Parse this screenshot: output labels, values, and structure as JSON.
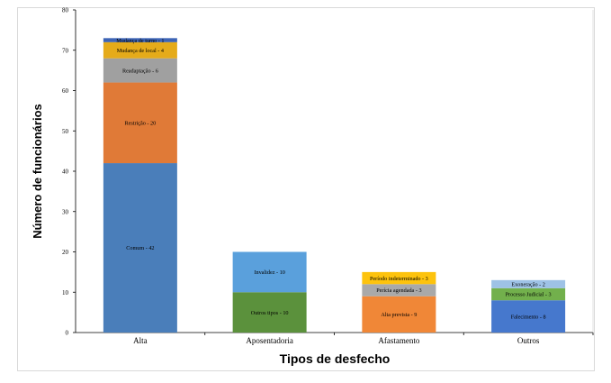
{
  "chart_data": {
    "type": "bar",
    "stacked": true,
    "xlabel": "Tipos de desfecho",
    "ylabel": "Número de funcionários",
    "ylim": [
      0,
      80
    ],
    "yticks": [
      0,
      10,
      20,
      30,
      40,
      50,
      60,
      70,
      80
    ],
    "grid": false,
    "legend": "none",
    "categories": [
      "Alta",
      "Aposentadoria",
      "Afastamento",
      "Outros"
    ],
    "bars": [
      {
        "category": "Alta",
        "segments": [
          {
            "label": "Comum - 42",
            "value": 42,
            "color": "#4a7eba"
          },
          {
            "label": "Restrição - 20",
            "value": 20,
            "color": "#e07a37"
          },
          {
            "label": "Readaptação - 6",
            "value": 6,
            "color": "#a0a0a0"
          },
          {
            "label": "Mudança de local - 4",
            "value": 4,
            "color": "#e5ab1a"
          },
          {
            "label": "Mudança de turno - 1",
            "value": 1,
            "color": "#3d64b5"
          }
        ]
      },
      {
        "category": "Aposentadoria",
        "segments": [
          {
            "label": "Outros tipos - 10",
            "value": 10,
            "color": "#5b913c"
          },
          {
            "label": "Invalidez - 10",
            "value": 10,
            "color": "#5aa0dc"
          }
        ]
      },
      {
        "category": "Afastamento",
        "segments": [
          {
            "label": "Alta prevista - 9",
            "value": 9,
            "color": "#f08737"
          },
          {
            "label": "Perícia agendada - 3",
            "value": 3,
            "color": "#a9a9a9"
          },
          {
            "label": "Período indeterminado - 3",
            "value": 3,
            "color": "#fdc30d"
          }
        ]
      },
      {
        "category": "Outros",
        "segments": [
          {
            "label": "Falecimento - 8",
            "value": 8,
            "color": "#4678cd"
          },
          {
            "label": "Processo Judicial - 3",
            "value": 3,
            "color": "#72b04c"
          },
          {
            "label": "Exoneração - 2",
            "value": 2,
            "color": "#9ec2e6"
          }
        ]
      }
    ]
  }
}
